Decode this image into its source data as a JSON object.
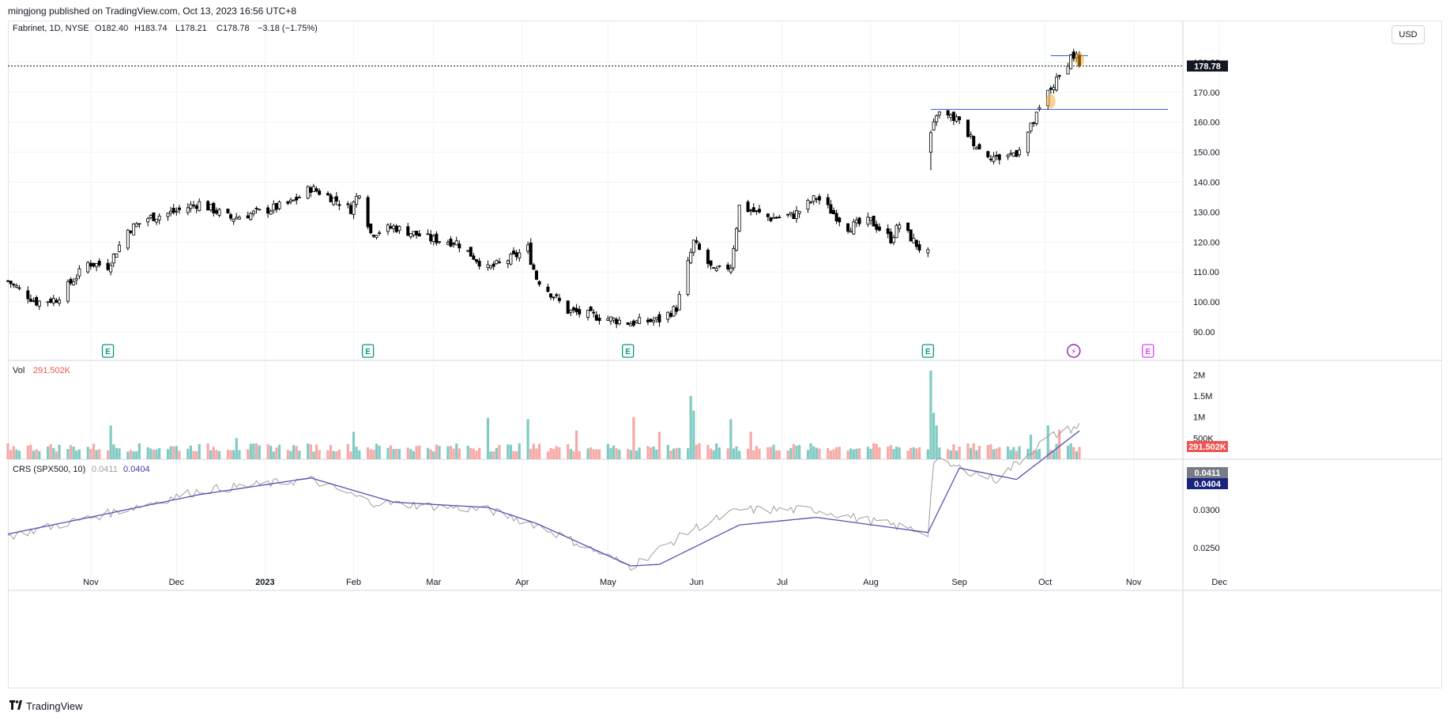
{
  "header": {
    "publisher": "mingjong published on TradingView.com, Oct 13, 2023 16:56 UTC+8"
  },
  "legend": {
    "symbol": "Fabrinet, 1D, NYSE",
    "open": "O182.40",
    "high": "H183.74",
    "low": "L178.21",
    "close": "C178.78",
    "change": "−3.18 (−1.75%)"
  },
  "currency": "USD",
  "footer": {
    "brand": "TradingView"
  },
  "colors": {
    "up": "#26a69a",
    "down": "#ef5350",
    "candle": "#000000",
    "line_blue": "#2a5bd7",
    "crs_main": "#9e9e9e",
    "crs_avg": "#5b4fb5",
    "earnings": "#089981",
    "dividend": "#9c27b0",
    "event_pink": "#e040fb",
    "highlight": "#f5a623"
  },
  "chart_data": [
    {
      "type": "candlestick",
      "title": "",
      "ylim": [
        82,
        186
      ],
      "y_ticks": [
        "90.00",
        "100.00",
        "110.00",
        "120.00",
        "130.00",
        "140.00",
        "150.00",
        "160.00",
        "170.00",
        "180.00"
      ],
      "x_ticks": [
        "Nov",
        "Dec",
        "2023",
        "Feb",
        "Mar",
        "Apr",
        "May",
        "Jun",
        "Jul",
        "Aug",
        "Sep",
        "Oct",
        "Nov",
        "Dec"
      ],
      "last_price": "178.78",
      "horizontal_lines": [
        {
          "price": 164.3,
          "from": "2023-08-22",
          "to": "2023-11-13"
        },
        {
          "price": 182.2,
          "from": "2023-10-03",
          "to": "2023-10-16"
        }
      ],
      "earnings_markers": [
        {
          "date": "2022-11-07",
          "label": "E"
        },
        {
          "date": "2023-02-06",
          "label": "E"
        },
        {
          "date": "2023-05-08",
          "label": "E"
        },
        {
          "date": "2023-08-21",
          "label": "E"
        },
        {
          "date": "2023-10-11",
          "label": "⚡"
        },
        {
          "date": "2023-11-06",
          "label": "E"
        }
      ],
      "anchors": [
        [
          "2022-10-03",
          107
        ],
        [
          "2022-10-13",
          100
        ],
        [
          "2022-10-20",
          101
        ],
        [
          "2022-10-31",
          113
        ],
        [
          "2022-11-07",
          112
        ],
        [
          "2022-11-14",
          124
        ],
        [
          "2022-11-21",
          128
        ],
        [
          "2022-11-30",
          130
        ],
        [
          "2022-12-09",
          133
        ],
        [
          "2022-12-20",
          128
        ],
        [
          "2022-12-30",
          130
        ],
        [
          "2023-01-10",
          133
        ],
        [
          "2023-01-17",
          138
        ],
        [
          "2023-01-24",
          135
        ],
        [
          "2023-01-31",
          131
        ],
        [
          "2023-02-03",
          137
        ],
        [
          "2023-02-07",
          123
        ],
        [
          "2023-02-15",
          125
        ],
        [
          "2023-02-28",
          121
        ],
        [
          "2023-03-09",
          120
        ],
        [
          "2023-03-20",
          111
        ],
        [
          "2023-03-29",
          115
        ],
        [
          "2023-04-03",
          118
        ],
        [
          "2023-04-04",
          114
        ],
        [
          "2023-04-06",
          108
        ],
        [
          "2023-04-17",
          97
        ],
        [
          "2023-04-28",
          95
        ],
        [
          "2023-05-09",
          93
        ],
        [
          "2023-05-19",
          94
        ],
        [
          "2023-05-25",
          98
        ],
        [
          "2023-05-31",
          120
        ],
        [
          "2023-06-07",
          110
        ],
        [
          "2023-06-13",
          112
        ],
        [
          "2023-06-16",
          132
        ],
        [
          "2023-06-27",
          128
        ],
        [
          "2023-07-05",
          129
        ],
        [
          "2023-07-13",
          135
        ],
        [
          "2023-07-24",
          125
        ],
        [
          "2023-08-01",
          127
        ],
        [
          "2023-08-08",
          121
        ],
        [
          "2023-08-11",
          126
        ],
        [
          "2023-08-18",
          118
        ],
        [
          "2023-08-21",
          116
        ],
        [
          "2023-08-22",
          155
        ],
        [
          "2023-08-24",
          163
        ],
        [
          "2023-08-31",
          161
        ],
        [
          "2023-09-08",
          151
        ],
        [
          "2023-09-14",
          148
        ],
        [
          "2023-09-21",
          150
        ],
        [
          "2023-09-27",
          160
        ],
        [
          "2023-10-02",
          170
        ],
        [
          "2023-10-06",
          175
        ],
        [
          "2023-10-10",
          182
        ],
        [
          "2023-10-12",
          182
        ],
        [
          "2023-10-13",
          178.78
        ]
      ],
      "gap": {
        "from": "2023-08-18",
        "to": "2023-08-22"
      }
    },
    {
      "type": "bar",
      "title": "Vol",
      "value_label": "291.502K",
      "ylim": [
        0,
        2100000
      ],
      "y_ticks": [
        "500K",
        "1M",
        "1.5M",
        "2M"
      ],
      "spikes": [
        [
          "2022-11-08",
          800000
        ],
        [
          "2022-12-22",
          500000
        ],
        [
          "2023-02-01",
          650000
        ],
        [
          "2023-03-20",
          980000
        ],
        [
          "2023-04-03",
          950000
        ],
        [
          "2023-04-20",
          680000
        ],
        [
          "2023-05-10",
          1000000
        ],
        [
          "2023-05-19",
          650000
        ],
        [
          "2023-05-30",
          1500000
        ],
        [
          "2023-05-31",
          1150000
        ],
        [
          "2023-06-13",
          950000
        ],
        [
          "2023-06-20",
          650000
        ],
        [
          "2023-08-22",
          2100000
        ],
        [
          "2023-08-23",
          1100000
        ],
        [
          "2023-08-24",
          800000
        ],
        [
          "2023-09-26",
          580000
        ],
        [
          "2023-10-02",
          800000
        ],
        [
          "2023-10-06",
          700000
        ]
      ]
    },
    {
      "type": "line",
      "title": "CRS (SPX500, 10)",
      "value_main": "0.0411",
      "value_avg": "0.0404",
      "ylim": [
        0.0215,
        0.0425
      ],
      "y_ticks": [
        "0.0250",
        "0.0300",
        "0.0350"
      ],
      "series": [
        {
          "name": "",
          "anchors": [
            [
              "2022-10-03",
              0.0265
            ],
            [
              "2022-11-07",
              0.0295
            ],
            [
              "2022-12-09",
              0.0325
            ],
            [
              "2023-01-17",
              0.034
            ],
            [
              "2023-02-07",
              0.031
            ],
            [
              "2023-03-20",
              0.03
            ],
            [
              "2023-04-06",
              0.028
            ],
            [
              "2023-05-09",
              0.0225
            ],
            [
              "2023-05-31",
              0.0275
            ],
            [
              "2023-06-16",
              0.03
            ],
            [
              "2023-07-13",
              0.03
            ],
            [
              "2023-08-21",
              0.027
            ],
            [
              "2023-08-23",
              0.0365
            ],
            [
              "2023-09-14",
              0.034
            ],
            [
              "2023-10-02",
              0.0395
            ],
            [
              "2023-10-13",
              0.0411
            ]
          ]
        },
        {
          "name": "",
          "anchors": [
            [
              "2022-10-03",
              0.0268
            ],
            [
              "2022-11-07",
              0.0295
            ],
            [
              "2022-12-09",
              0.032
            ],
            [
              "2023-01-17",
              0.0342
            ],
            [
              "2023-02-15",
              0.031
            ],
            [
              "2023-03-20",
              0.0303
            ],
            [
              "2023-04-06",
              0.0282
            ],
            [
              "2023-05-09",
              0.0226
            ],
            [
              "2023-05-19",
              0.0228
            ],
            [
              "2023-06-16",
              0.028
            ],
            [
              "2023-07-13",
              0.029
            ],
            [
              "2023-08-21",
              0.027
            ],
            [
              "2023-09-01",
              0.0355
            ],
            [
              "2023-09-21",
              0.034
            ],
            [
              "2023-10-13",
              0.0404
            ]
          ]
        }
      ]
    }
  ]
}
